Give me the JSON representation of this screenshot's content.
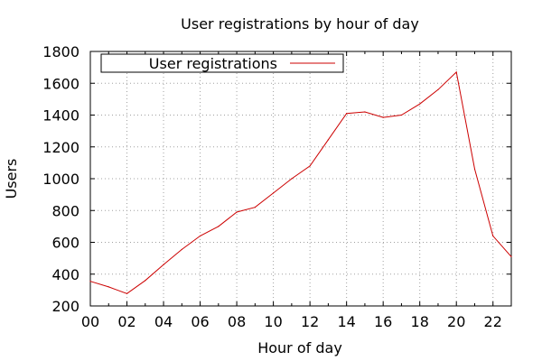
{
  "chart_data": {
    "type": "line",
    "title": "User registrations by hour of day",
    "xlabel": "Hour of day",
    "ylabel": "Users",
    "xlim": [
      0,
      23
    ],
    "ylim": [
      200,
      1800
    ],
    "grid": true,
    "legend": "top-left",
    "x_ticks": [
      0,
      2,
      4,
      6,
      8,
      10,
      12,
      14,
      16,
      18,
      20,
      22
    ],
    "x_tick_labels": [
      "00",
      "02",
      "04",
      "06",
      "08",
      "10",
      "12",
      "14",
      "16",
      "18",
      "20",
      "22"
    ],
    "y_ticks": [
      200,
      400,
      600,
      800,
      1000,
      1200,
      1400,
      1600,
      1800
    ],
    "y_tick_labels": [
      "200",
      "400",
      "600",
      "800",
      "1000",
      "1200",
      "1400",
      "1600",
      "1800"
    ],
    "x": [
      0,
      1,
      2,
      3,
      4,
      5,
      6,
      7,
      8,
      9,
      10,
      11,
      12,
      13,
      14,
      15,
      16,
      17,
      18,
      19,
      20,
      21,
      22,
      23
    ],
    "series": [
      {
        "name": "User registrations",
        "color": "#cc0000",
        "values": [
          355,
          320,
          278,
          360,
          460,
          555,
          640,
          700,
          790,
          820,
          910,
          1000,
          1080,
          1245,
          1410,
          1420,
          1385,
          1400,
          1470,
          1560,
          1670,
          1060,
          640,
          510
        ]
      }
    ]
  }
}
